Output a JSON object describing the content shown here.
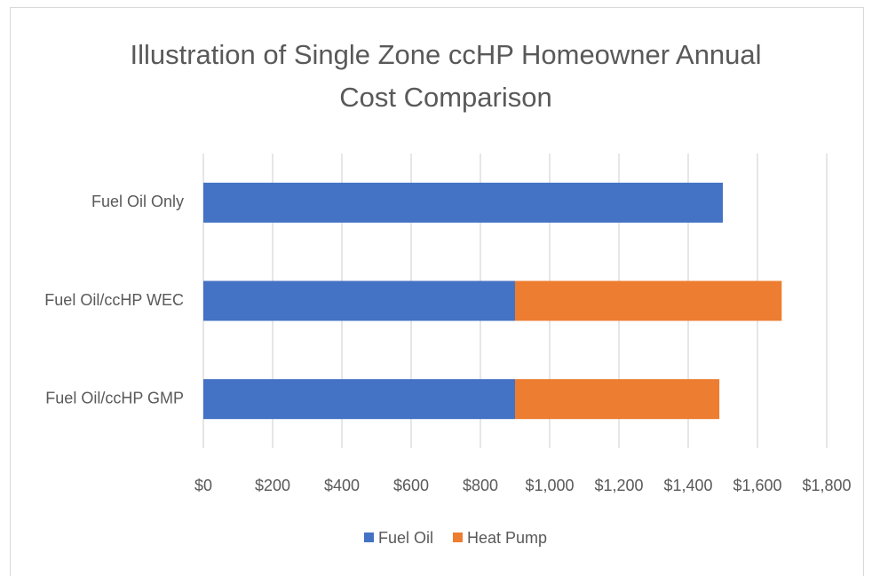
{
  "chart_data": {
    "type": "stacked_barh",
    "title": "Illustration of Single Zone ccHP Homeowner Annual Cost Comparison",
    "categories": [
      "Fuel Oil Only",
      "Fuel Oil/ccHP WEC",
      "Fuel Oil/ccHP GMP"
    ],
    "series": [
      {
        "name": "Fuel Oil",
        "color": "#4472c4",
        "values": [
          1500,
          900,
          900
        ]
      },
      {
        "name": "Heat Pump",
        "color": "#ed7d31",
        "values": [
          0,
          770,
          590
        ]
      }
    ],
    "xlim": [
      0,
      1800
    ],
    "xticks": [
      {
        "value": 0,
        "label": "$0"
      },
      {
        "value": 200,
        "label": "$200"
      },
      {
        "value": 400,
        "label": "$400"
      },
      {
        "value": 600,
        "label": "$600"
      },
      {
        "value": 800,
        "label": "$800"
      },
      {
        "value": 1000,
        "label": "$1,000"
      },
      {
        "value": 1200,
        "label": "$1,200"
      },
      {
        "value": 1400,
        "label": "$1,400"
      },
      {
        "value": 1600,
        "label": "$1,600"
      },
      {
        "value": 1800,
        "label": "$1,800"
      }
    ],
    "grid": true,
    "legend": "bottom"
  }
}
